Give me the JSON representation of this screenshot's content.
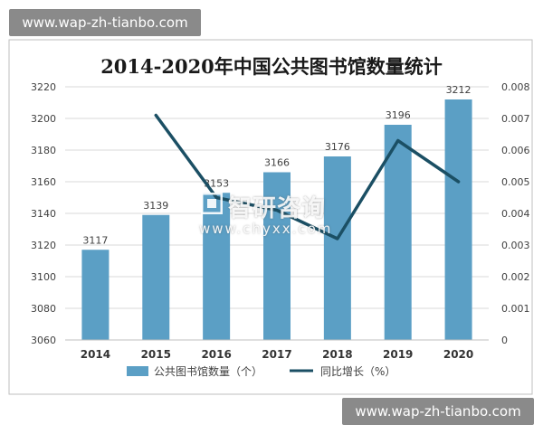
{
  "watermark": {
    "top": "www.wap-zh-tianbo.com",
    "bottom": "www.wap-zh-tianbo.com",
    "brand_name": "智研咨询",
    "brand_url": "www.chyxx.com"
  },
  "colors": {
    "bar": "#5b9fc5",
    "line": "#1b4f64",
    "grid": "#d9d9d9",
    "text": "#404040"
  },
  "chart_data": {
    "type": "bar",
    "title": "2014-2020年中国公共图书馆数量统计",
    "categories": [
      "2014",
      "2015",
      "2016",
      "2017",
      "2018",
      "2019",
      "2020"
    ],
    "series": [
      {
        "name": "公共图书馆数量（个）",
        "type": "bar",
        "axis": "left",
        "values": [
          3117,
          3139,
          3153,
          3166,
          3176,
          3196,
          3212
        ],
        "data_labels": [
          "3117",
          "3139",
          "3153",
          "3166",
          "3176",
          "3196",
          "3212"
        ]
      },
      {
        "name": "同比增长（%）",
        "type": "line",
        "axis": "right",
        "values": [
          null,
          0.0071,
          0.0045,
          0.0041,
          0.0032,
          0.0063,
          0.005
        ]
      }
    ],
    "y_left": {
      "range": [
        3060,
        3220
      ],
      "ticks": [
        3060,
        3080,
        3100,
        3120,
        3140,
        3160,
        3180,
        3200,
        3220
      ],
      "tick_labels": [
        "3060",
        "3080",
        "3100",
        "3120",
        "3140",
        "3160",
        "3180",
        "3200",
        "3220"
      ]
    },
    "y_right": {
      "range": [
        0,
        0.008
      ],
      "ticks": [
        0,
        0.001,
        0.002,
        0.003,
        0.004,
        0.005,
        0.006,
        0.007,
        0.008
      ],
      "tick_labels": [
        "0",
        "0.001",
        "0.002",
        "0.003",
        "0.004",
        "0.005",
        "0.006",
        "0.007",
        "0.008"
      ]
    },
    "grid": true,
    "legend_position": "bottom"
  }
}
